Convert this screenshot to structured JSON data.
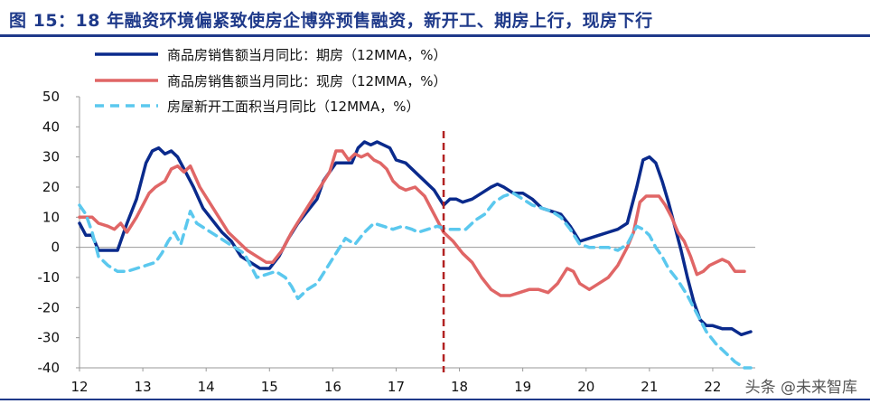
{
  "figure": {
    "title": "图 15：18 年融资环境偏紧致使房企博弈预售融资，新开工、期房上行，现房下行",
    "watermark": "头条 @未来智库"
  },
  "colors": {
    "title": "#1f3a8a",
    "futures": "#0a2a8c",
    "existing": "#e06666",
    "newstarts": "#5bc8ee",
    "marker": "#b22222"
  },
  "chart_data": {
    "type": "line",
    "title": "",
    "xlabel": "",
    "ylabel": "",
    "ylim": [
      -40,
      50
    ],
    "yticks": [
      -40,
      -30,
      -20,
      -10,
      0,
      10,
      20,
      30,
      40,
      50
    ],
    "xlim": [
      12,
      22.7
    ],
    "xticks": [
      "12",
      "13",
      "14",
      "15",
      "16",
      "17",
      "18",
      "19",
      "20",
      "21",
      "22"
    ],
    "grid": false,
    "legend": "top",
    "marker_line": {
      "x": 17.75,
      "style": "dashed"
    },
    "series": [
      {
        "name": "商品房销售额当月同比：期房（12MMA，%）",
        "style": "solid",
        "points": [
          [
            12.0,
            8
          ],
          [
            12.1,
            4
          ],
          [
            12.2,
            4
          ],
          [
            12.3,
            -1
          ],
          [
            12.45,
            -1
          ],
          [
            12.6,
            -1
          ],
          [
            12.75,
            8
          ],
          [
            12.9,
            16
          ],
          [
            13.05,
            28
          ],
          [
            13.15,
            32
          ],
          [
            13.25,
            33
          ],
          [
            13.35,
            31
          ],
          [
            13.45,
            32
          ],
          [
            13.55,
            30
          ],
          [
            13.65,
            26
          ],
          [
            13.8,
            20
          ],
          [
            13.95,
            13
          ],
          [
            14.1,
            9
          ],
          [
            14.25,
            5
          ],
          [
            14.4,
            2
          ],
          [
            14.55,
            -3
          ],
          [
            14.7,
            -5
          ],
          [
            14.85,
            -7
          ],
          [
            15.0,
            -7
          ],
          [
            15.15,
            -3
          ],
          [
            15.3,
            3
          ],
          [
            15.45,
            8
          ],
          [
            15.6,
            12
          ],
          [
            15.75,
            16
          ],
          [
            15.85,
            22
          ],
          [
            15.95,
            25
          ],
          [
            16.05,
            28
          ],
          [
            16.15,
            28
          ],
          [
            16.3,
            28
          ],
          [
            16.4,
            33
          ],
          [
            16.5,
            35
          ],
          [
            16.6,
            34
          ],
          [
            16.7,
            35
          ],
          [
            16.8,
            34
          ],
          [
            16.9,
            33
          ],
          [
            17.0,
            29
          ],
          [
            17.15,
            28
          ],
          [
            17.3,
            25
          ],
          [
            17.45,
            22
          ],
          [
            17.6,
            19
          ],
          [
            17.75,
            14
          ],
          [
            17.85,
            16
          ],
          [
            17.95,
            16
          ],
          [
            18.05,
            15
          ],
          [
            18.2,
            16
          ],
          [
            18.35,
            18
          ],
          [
            18.5,
            20
          ],
          [
            18.6,
            21
          ],
          [
            18.7,
            20
          ],
          [
            18.85,
            18
          ],
          [
            19.0,
            18
          ],
          [
            19.15,
            16
          ],
          [
            19.3,
            13
          ],
          [
            19.45,
            12
          ],
          [
            19.6,
            11
          ],
          [
            19.75,
            7
          ],
          [
            19.9,
            2
          ],
          [
            20.05,
            3
          ],
          [
            20.2,
            4
          ],
          [
            20.35,
            5
          ],
          [
            20.5,
            6
          ],
          [
            20.65,
            8
          ],
          [
            20.8,
            20
          ],
          [
            20.9,
            29
          ],
          [
            21.0,
            30
          ],
          [
            21.1,
            28
          ],
          [
            21.2,
            22
          ],
          [
            21.3,
            15
          ],
          [
            21.4,
            7
          ],
          [
            21.5,
            -1
          ],
          [
            21.6,
            -10
          ],
          [
            21.7,
            -18
          ],
          [
            21.8,
            -24
          ],
          [
            21.9,
            -26
          ],
          [
            22.0,
            -26
          ],
          [
            22.15,
            -27
          ],
          [
            22.3,
            -27
          ],
          [
            22.45,
            -29
          ],
          [
            22.6,
            -28
          ]
        ]
      },
      {
        "name": "商品房销售额当月同比：现房（12MMA，%）",
        "style": "solid",
        "points": [
          [
            12.0,
            10
          ],
          [
            12.1,
            10
          ],
          [
            12.2,
            10
          ],
          [
            12.3,
            8
          ],
          [
            12.45,
            7
          ],
          [
            12.55,
            6
          ],
          [
            12.65,
            8
          ],
          [
            12.75,
            5
          ],
          [
            12.9,
            10
          ],
          [
            13.0,
            14
          ],
          [
            13.1,
            18
          ],
          [
            13.2,
            20
          ],
          [
            13.35,
            22
          ],
          [
            13.45,
            26
          ],
          [
            13.55,
            27
          ],
          [
            13.65,
            25
          ],
          [
            13.75,
            27
          ],
          [
            13.9,
            20
          ],
          [
            14.05,
            15
          ],
          [
            14.2,
            10
          ],
          [
            14.35,
            5
          ],
          [
            14.5,
            2
          ],
          [
            14.65,
            -1
          ],
          [
            14.8,
            -3
          ],
          [
            14.95,
            -5
          ],
          [
            15.05,
            -5
          ],
          [
            15.2,
            -1
          ],
          [
            15.35,
            5
          ],
          [
            15.5,
            10
          ],
          [
            15.65,
            15
          ],
          [
            15.8,
            20
          ],
          [
            15.95,
            25
          ],
          [
            16.05,
            32
          ],
          [
            16.15,
            32
          ],
          [
            16.25,
            29
          ],
          [
            16.35,
            31
          ],
          [
            16.45,
            30
          ],
          [
            16.55,
            31
          ],
          [
            16.65,
            29
          ],
          [
            16.75,
            28
          ],
          [
            16.85,
            26
          ],
          [
            16.95,
            22
          ],
          [
            17.05,
            20
          ],
          [
            17.15,
            19
          ],
          [
            17.3,
            20
          ],
          [
            17.45,
            17
          ],
          [
            17.6,
            11
          ],
          [
            17.75,
            5
          ],
          [
            17.9,
            2
          ],
          [
            18.05,
            -2
          ],
          [
            18.2,
            -5
          ],
          [
            18.35,
            -10
          ],
          [
            18.5,
            -14
          ],
          [
            18.65,
            -16
          ],
          [
            18.8,
            -16
          ],
          [
            18.95,
            -15
          ],
          [
            19.1,
            -14
          ],
          [
            19.25,
            -14
          ],
          [
            19.4,
            -15
          ],
          [
            19.55,
            -12
          ],
          [
            19.7,
            -7
          ],
          [
            19.8,
            -8
          ],
          [
            19.9,
            -12
          ],
          [
            20.05,
            -14
          ],
          [
            20.2,
            -12
          ],
          [
            20.35,
            -10
          ],
          [
            20.5,
            -6
          ],
          [
            20.65,
            0
          ],
          [
            20.75,
            5
          ],
          [
            20.85,
            15
          ],
          [
            20.95,
            17
          ],
          [
            21.05,
            17
          ],
          [
            21.15,
            17
          ],
          [
            21.25,
            14
          ],
          [
            21.35,
            10
          ],
          [
            21.45,
            5
          ],
          [
            21.55,
            2
          ],
          [
            21.65,
            -3
          ],
          [
            21.75,
            -9
          ],
          [
            21.85,
            -8
          ],
          [
            21.95,
            -6
          ],
          [
            22.05,
            -5
          ],
          [
            22.15,
            -4
          ],
          [
            22.25,
            -5
          ],
          [
            22.35,
            -8
          ],
          [
            22.5,
            -8
          ]
        ]
      },
      {
        "name": "房屋新开工面积当月同比（12MMA，%）",
        "style": "dashed",
        "points": [
          [
            12.0,
            14
          ],
          [
            12.1,
            11
          ],
          [
            12.2,
            5
          ],
          [
            12.3,
            -3
          ],
          [
            12.45,
            -6
          ],
          [
            12.6,
            -8
          ],
          [
            12.75,
            -8
          ],
          [
            12.9,
            -7
          ],
          [
            13.05,
            -6
          ],
          [
            13.2,
            -5
          ],
          [
            13.3,
            -2
          ],
          [
            13.4,
            2
          ],
          [
            13.5,
            5
          ],
          [
            13.6,
            1
          ],
          [
            13.75,
            12
          ],
          [
            13.85,
            8
          ],
          [
            14.0,
            6
          ],
          [
            14.15,
            4
          ],
          [
            14.3,
            2
          ],
          [
            14.45,
            0
          ],
          [
            14.6,
            -2
          ],
          [
            14.7,
            -6
          ],
          [
            14.8,
            -10
          ],
          [
            14.95,
            -9
          ],
          [
            15.1,
            -8
          ],
          [
            15.25,
            -10
          ],
          [
            15.35,
            -13
          ],
          [
            15.45,
            -17
          ],
          [
            15.6,
            -14
          ],
          [
            15.75,
            -12
          ],
          [
            15.9,
            -7
          ],
          [
            16.05,
            -2
          ],
          [
            16.2,
            3
          ],
          [
            16.35,
            1
          ],
          [
            16.5,
            5
          ],
          [
            16.65,
            8
          ],
          [
            16.8,
            7
          ],
          [
            16.95,
            6
          ],
          [
            17.1,
            7
          ],
          [
            17.25,
            6
          ],
          [
            17.35,
            5
          ],
          [
            17.5,
            6
          ],
          [
            17.65,
            7
          ],
          [
            17.8,
            6
          ],
          [
            17.95,
            6
          ],
          [
            18.1,
            6
          ],
          [
            18.25,
            9
          ],
          [
            18.4,
            11
          ],
          [
            18.55,
            15
          ],
          [
            18.7,
            17
          ],
          [
            18.85,
            18
          ],
          [
            19.0,
            16
          ],
          [
            19.15,
            14
          ],
          [
            19.3,
            13
          ],
          [
            19.45,
            12
          ],
          [
            19.6,
            10
          ],
          [
            19.75,
            6
          ],
          [
            19.9,
            1
          ],
          [
            20.05,
            0
          ],
          [
            20.2,
            0
          ],
          [
            20.35,
            0
          ],
          [
            20.5,
            -1
          ],
          [
            20.65,
            1
          ],
          [
            20.8,
            7
          ],
          [
            20.9,
            6
          ],
          [
            21.0,
            4
          ],
          [
            21.1,
            0
          ],
          [
            21.2,
            -3
          ],
          [
            21.3,
            -7
          ],
          [
            21.45,
            -11
          ],
          [
            21.6,
            -16
          ],
          [
            21.75,
            -22
          ],
          [
            21.9,
            -28
          ],
          [
            22.05,
            -32
          ],
          [
            22.2,
            -35
          ],
          [
            22.35,
            -38
          ],
          [
            22.5,
            -40
          ],
          [
            22.6,
            -40
          ]
        ]
      }
    ]
  }
}
